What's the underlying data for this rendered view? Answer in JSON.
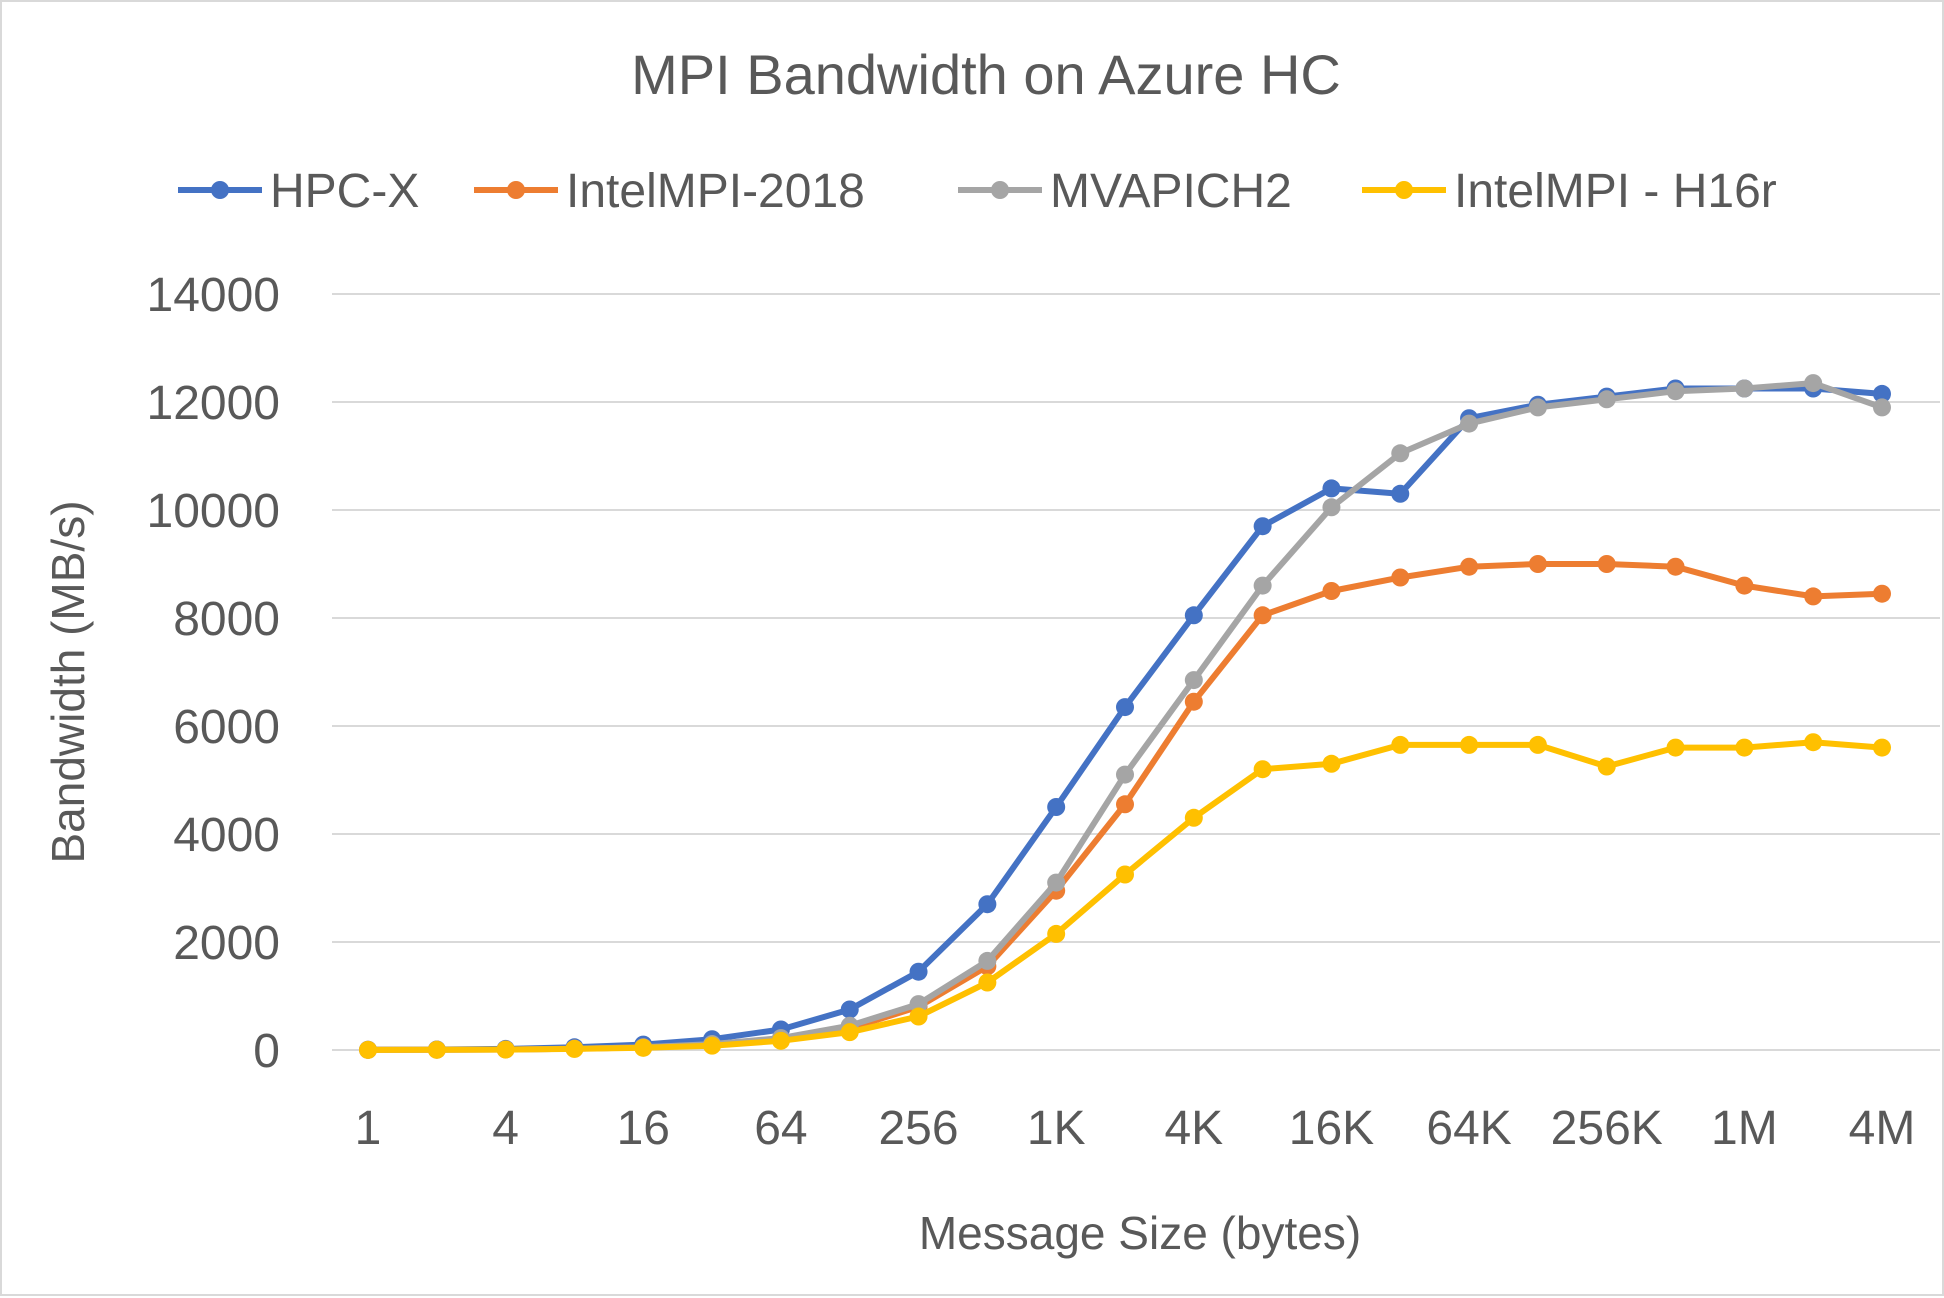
{
  "chart_data": {
    "type": "line",
    "title": "MPI Bandwidth on Azure HC",
    "xlabel": "Message Size (bytes)",
    "ylabel": "Bandwidth (MB/s)",
    "ylim": [
      0,
      14000
    ],
    "y_ticks": [
      "0",
      "2000",
      "4000",
      "6000",
      "8000",
      "10000",
      "12000",
      "14000"
    ],
    "x_ticks": [
      "1",
      "4",
      "16",
      "64",
      "256",
      "1K",
      "4K",
      "16K",
      "64K",
      "256K",
      "1M",
      "4M"
    ],
    "x_categories": [
      "1",
      "2",
      "4",
      "8",
      "16",
      "32",
      "64",
      "128",
      "256",
      "512",
      "1K",
      "2K",
      "4K",
      "8K",
      "16K",
      "32K",
      "64K",
      "128K",
      "256K",
      "512K",
      "1M",
      "2M",
      "4M"
    ],
    "grid": true,
    "legend_position": "top",
    "series": [
      {
        "name": "HPC-X",
        "color": "#4472c4",
        "values": [
          5,
          10,
          20,
          50,
          100,
          200,
          380,
          750,
          1450,
          2700,
          4500,
          6350,
          8050,
          9700,
          10400,
          10300,
          11700,
          11950,
          12100,
          12250,
          12250,
          12250,
          12150
        ]
      },
      {
        "name": "IntelMPI-2018",
        "color": "#ed7d31",
        "values": [
          3,
          5,
          10,
          25,
          50,
          100,
          200,
          400,
          800,
          1550,
          2950,
          4550,
          6450,
          8050,
          8500,
          8750,
          8950,
          9000,
          9000,
          8950,
          8600,
          8400,
          8450
        ]
      },
      {
        "name": "MVAPICH2",
        "color": "#a5a5a5",
        "values": [
          3,
          5,
          10,
          25,
          50,
          110,
          220,
          450,
          850,
          1650,
          3100,
          5100,
          6850,
          8600,
          10050,
          11050,
          11600,
          11900,
          12050,
          12200,
          12250,
          12350,
          11900
        ]
      },
      {
        "name": "IntelMPI - H16r",
        "color": "#ffc000",
        "values": [
          2,
          4,
          8,
          20,
          40,
          80,
          170,
          330,
          620,
          1250,
          2150,
          3250,
          4300,
          5200,
          5300,
          5650,
          5650,
          5650,
          5250,
          5600,
          5600,
          5700,
          5600
        ]
      }
    ]
  }
}
